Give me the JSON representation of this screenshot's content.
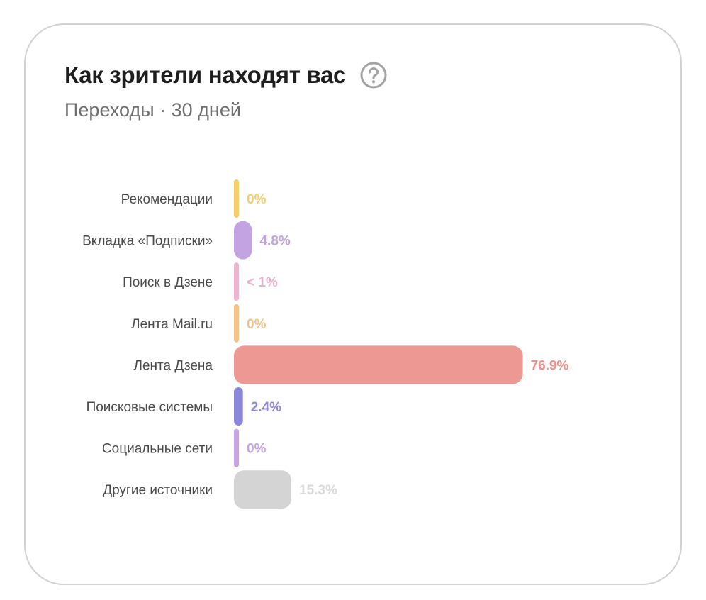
{
  "header": {
    "title": "Как зрители находят вас",
    "subtitle": "Переходы · 30 дней",
    "help_icon": "question-circle-icon"
  },
  "chart_data": {
    "type": "bar",
    "orientation": "horizontal",
    "categories": [
      "Рекомендации",
      "Вкладка «Подписки»",
      "Поиск в Дзене",
      "Лента Mail.ru",
      "Лента Дзена",
      "Поисковые системы",
      "Социальные сети",
      "Другие источники"
    ],
    "values": [
      0,
      4.8,
      0.5,
      0,
      76.9,
      2.4,
      0,
      15.3
    ],
    "value_labels": [
      "0%",
      "4.8%",
      "< 1%",
      "0%",
      "76.9%",
      "2.4%",
      "0%",
      "15.3%"
    ],
    "colors": [
      "#f6cf6b",
      "#c4a3e3",
      "#eeb3cf",
      "#f5c28a",
      "#ee9894",
      "#8c88d9",
      "#c9a5e3",
      "#d4d4d4"
    ],
    "label_colors": [
      "#f4cd6e",
      "#c3a2e1",
      "#eeb1cd",
      "#f2c28e",
      "#ea928e",
      "#8c88d9",
      "#c4a3e3",
      "#dadada"
    ],
    "xlim": [
      0,
      100
    ],
    "grid": false,
    "legend": "none"
  }
}
